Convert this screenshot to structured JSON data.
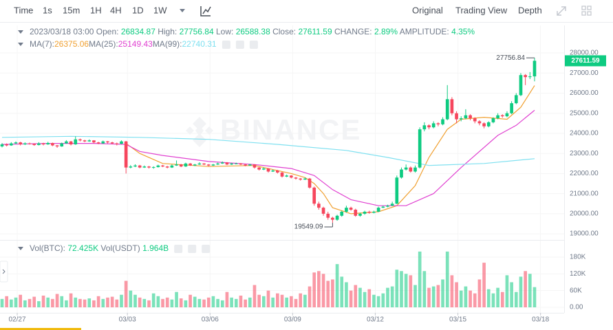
{
  "toolbar": {
    "intervals": [
      {
        "label": "Time",
        "active": false
      },
      {
        "label": "1s",
        "active": false
      },
      {
        "label": "15m",
        "active": false
      },
      {
        "label": "1H",
        "active": false
      },
      {
        "label": "4H",
        "active": true
      },
      {
        "label": "1D",
        "active": false
      },
      {
        "label": "1W",
        "active": false
      }
    ],
    "views": [
      {
        "label": "Original",
        "active": true
      },
      {
        "label": "Trading View",
        "active": false
      },
      {
        "label": "Depth",
        "active": false
      }
    ]
  },
  "info": {
    "date": "2023/03/18 03:00",
    "open_label": "Open:",
    "high_label": "High:",
    "low_label": "Low:",
    "close_label": "Close:",
    "change_label": "CHANGE:",
    "change": "2.89%",
    "amplitude_label": "AMPLITUDE:",
    "amplitude": "4.35%",
    "vol_btc_label": "Vol(BTC):",
    "vol_btc": "72.425K",
    "vol_usdt_label": "Vol(USDT)",
    "vol_usdt": "1.964B"
  },
  "watermark": "BINANCE",
  "chart_data": {
    "type": "candlestick",
    "up_color": "#0ecb81",
    "down_color": "#f6465d",
    "grid": true,
    "xlim": [
      -0.45,
      118.7
    ],
    "xticks": [
      {
        "value": 3.3,
        "label": "02/27"
      },
      {
        "value": 27.3,
        "label": "03/03"
      },
      {
        "value": 45.3,
        "label": "03/06"
      },
      {
        "value": 63.3,
        "label": "03/09"
      },
      {
        "value": 81.3,
        "label": "03/12"
      },
      {
        "value": 99.3,
        "label": "03/15"
      },
      {
        "value": 117.3,
        "label": "03/18"
      }
    ],
    "ylim": [
      18730,
      29370
    ],
    "yticks": [
      {
        "value": 19000,
        "label": "19000.00"
      },
      {
        "value": 20000,
        "label": "20000.00"
      },
      {
        "value": 21000,
        "label": "21000.00"
      },
      {
        "value": 22000,
        "label": "22000.00"
      },
      {
        "value": 23000,
        "label": "23000.00"
      },
      {
        "value": 24000,
        "label": "24000.00"
      },
      {
        "value": 25000,
        "label": "25000.00"
      },
      {
        "value": 26000,
        "label": "26000.00"
      },
      {
        "value": 27000,
        "label": "27000.00"
      },
      {
        "value": 28000,
        "label": "28000.00"
      }
    ],
    "candles": [
      [
        23350,
        23520,
        23300,
        23450
      ],
      [
        23450,
        23500,
        23350,
        23400
      ],
      [
        23400,
        23560,
        23380,
        23500
      ],
      [
        23500,
        23600,
        23460,
        23550
      ],
      [
        23550,
        23580,
        23400,
        23450
      ],
      [
        23450,
        23550,
        23420,
        23500
      ],
      [
        23500,
        23540,
        23440,
        23480
      ],
      [
        23480,
        23500,
        23380,
        23420
      ],
      [
        23420,
        23560,
        23400,
        23500
      ],
      [
        23500,
        23530,
        23400,
        23450
      ],
      [
        23450,
        23580,
        23430,
        23520
      ],
      [
        23520,
        23540,
        23360,
        23400
      ],
      [
        23400,
        23420,
        23280,
        23350
      ],
      [
        23350,
        23540,
        23330,
        23500
      ],
      [
        23500,
        23660,
        23480,
        23600
      ],
      [
        23600,
        23620,
        23400,
        23450
      ],
      [
        23450,
        23850,
        23430,
        23700
      ],
      [
        23700,
        23740,
        23600,
        23650
      ],
      [
        23650,
        23680,
        23560,
        23600
      ],
      [
        23600,
        23700,
        23580,
        23650
      ],
      [
        23650,
        23660,
        23500,
        23550
      ],
      [
        23550,
        23580,
        23460,
        23500
      ],
      [
        23500,
        23640,
        23480,
        23600
      ],
      [
        23600,
        23620,
        23500,
        23550
      ],
      [
        23550,
        23580,
        23460,
        23500
      ],
      [
        23500,
        23540,
        23400,
        23480
      ],
      [
        23480,
        23650,
        23460,
        23600
      ],
      [
        23600,
        23620,
        22000,
        22300
      ],
      [
        22300,
        22420,
        22260,
        22350
      ],
      [
        22350,
        22460,
        22320,
        22400
      ],
      [
        22400,
        22430,
        22260,
        22300
      ],
      [
        22300,
        22400,
        22280,
        22350
      ],
      [
        22350,
        22380,
        22250,
        22300
      ],
      [
        22300,
        22360,
        22240,
        22320
      ],
      [
        22320,
        22440,
        22300,
        22400
      ],
      [
        22400,
        22430,
        22320,
        22350
      ],
      [
        22350,
        22380,
        22260,
        22300
      ],
      [
        22300,
        22450,
        22280,
        22400
      ],
      [
        22400,
        22650,
        22380,
        22450
      ],
      [
        22450,
        22480,
        22320,
        22350
      ],
      [
        22350,
        22540,
        22330,
        22500
      ],
      [
        22500,
        22520,
        22380,
        22400
      ],
      [
        22400,
        22480,
        22370,
        22450
      ],
      [
        22450,
        22560,
        22430,
        22500
      ],
      [
        22500,
        22520,
        22420,
        22450
      ],
      [
        22450,
        22470,
        22360,
        22400
      ],
      [
        22400,
        22480,
        22380,
        22450
      ],
      [
        22450,
        22540,
        22430,
        22500
      ],
      [
        22500,
        22600,
        22480,
        22550
      ],
      [
        22550,
        22570,
        22420,
        22450
      ],
      [
        22450,
        22530,
        22430,
        22500
      ],
      [
        22500,
        22540,
        22460,
        22500
      ],
      [
        22500,
        22520,
        22420,
        22450
      ],
      [
        22450,
        22470,
        22360,
        22400
      ],
      [
        22400,
        22480,
        22380,
        22450
      ],
      [
        22450,
        22460,
        22250,
        22300
      ],
      [
        22300,
        22320,
        22150,
        22200
      ],
      [
        22200,
        22300,
        22170,
        22250
      ],
      [
        22250,
        22270,
        22050,
        22100
      ],
      [
        22100,
        22200,
        22080,
        22150
      ],
      [
        22150,
        22180,
        22000,
        22050
      ],
      [
        22050,
        22080,
        21800,
        21850
      ],
      [
        21850,
        21950,
        21820,
        21900
      ],
      [
        21900,
        21920,
        21760,
        21800
      ],
      [
        21800,
        21830,
        21700,
        21750
      ],
      [
        21750,
        21780,
        21650,
        21700
      ],
      [
        21700,
        21800,
        21680,
        21750
      ],
      [
        21750,
        21780,
        21250,
        21300
      ],
      [
        21300,
        21350,
        20400,
        20500
      ],
      [
        20500,
        20600,
        20200,
        20300
      ],
      [
        20300,
        20350,
        19900,
        20000
      ],
      [
        20000,
        20100,
        19700,
        19800
      ],
      [
        19800,
        19850,
        19549.09,
        19700
      ],
      [
        19700,
        19950,
        19650,
        19900
      ],
      [
        19900,
        20150,
        19850,
        20100
      ],
      [
        20100,
        20400,
        20050,
        20300
      ],
      [
        20300,
        20350,
        20150,
        20200
      ],
      [
        20200,
        20250,
        19850,
        19900
      ],
      [
        19900,
        20050,
        19850,
        20000
      ],
      [
        20000,
        20150,
        19950,
        20100
      ],
      [
        20100,
        20150,
        20000,
        20050
      ],
      [
        20050,
        20150,
        20020,
        20100
      ],
      [
        20100,
        20350,
        20080,
        20300
      ],
      [
        20300,
        20400,
        20280,
        20350
      ],
      [
        20350,
        20450,
        20320,
        20400
      ],
      [
        20400,
        20600,
        20380,
        20500
      ],
      [
        20500,
        21900,
        20480,
        21800
      ],
      [
        21800,
        22300,
        21750,
        22200
      ],
      [
        22200,
        22450,
        22150,
        22300
      ],
      [
        22300,
        22350,
        22050,
        22100
      ],
      [
        22100,
        22400,
        22050,
        22300
      ],
      [
        22300,
        24300,
        22250,
        24200
      ],
      [
        24200,
        24550,
        24100,
        24400
      ],
      [
        24400,
        24450,
        24200,
        24300
      ],
      [
        24300,
        24600,
        24250,
        24500
      ],
      [
        24500,
        24550,
        24350,
        24450
      ],
      [
        24450,
        24800,
        24400,
        24700
      ],
      [
        24700,
        26400,
        24650,
        25700
      ],
      [
        25700,
        25800,
        24900,
        25000
      ],
      [
        25000,
        25100,
        24500,
        24700
      ],
      [
        24700,
        24850,
        24600,
        24750
      ],
      [
        24750,
        25200,
        24700,
        24900
      ],
      [
        24900,
        24950,
        24650,
        24750
      ],
      [
        24750,
        24800,
        24500,
        24600
      ],
      [
        24600,
        24650,
        24400,
        24500
      ],
      [
        24500,
        24550,
        24250,
        24350
      ],
      [
        24350,
        24600,
        24300,
        24550
      ],
      [
        24550,
        24800,
        24500,
        24750
      ],
      [
        24750,
        25000,
        24700,
        24900
      ],
      [
        24900,
        24950,
        24780,
        24850
      ],
      [
        24850,
        25100,
        24800,
        25000
      ],
      [
        25000,
        25600,
        24950,
        25500
      ],
      [
        25500,
        26000,
        25450,
        25900
      ],
      [
        25900,
        27000,
        25850,
        26900
      ],
      [
        26900,
        26950,
        26400,
        26800
      ],
      [
        26800,
        27050,
        26700,
        26834.87
      ],
      [
        26834.87,
        27756.84,
        26588.38,
        27611.59
      ]
    ],
    "ma_series": [
      {
        "name": "MA(7):",
        "color": "#f0a030",
        "x": [
          27,
          30,
          35,
          45,
          55,
          63,
          66,
          68,
          70,
          72,
          76,
          82,
          86,
          90,
          93,
          97,
          100,
          105,
          110,
          113,
          116
        ],
        "values": [
          23500,
          23000,
          22500,
          22350,
          22400,
          22000,
          21800,
          21500,
          21000,
          20300,
          20000,
          20100,
          20400,
          21400,
          22800,
          24200,
          24700,
          24800,
          24700,
          25300,
          26375.06
        ]
      },
      {
        "name": "MA(25):",
        "color": "#e040d0",
        "x": [
          0,
          10,
          20,
          27,
          30,
          35,
          45,
          55,
          63,
          68,
          72,
          76,
          82,
          88,
          94,
          100,
          108,
          112,
          116
        ],
        "values": [
          23450,
          23500,
          23500,
          23450,
          23100,
          22900,
          22600,
          22450,
          22250,
          21900,
          21200,
          20700,
          20400,
          20400,
          21000,
          22300,
          23900,
          24400,
          25149.43
        ]
      },
      {
        "name": "MA(99):",
        "color": "#7ee0f0",
        "x": [
          0,
          15,
          30,
          45,
          60,
          75,
          84,
          93,
          105,
          116
        ],
        "values": [
          23800,
          23850,
          23800,
          23700,
          23450,
          23150,
          22800,
          22400,
          22500,
          22740.31
        ]
      }
    ],
    "volume": {
      "values": [
        30000,
        40000,
        28000,
        35000,
        45000,
        25000,
        30000,
        38000,
        22000,
        42000,
        35000,
        30000,
        48000,
        40000,
        25000,
        50000,
        35000,
        30000,
        28000,
        32000,
        25000,
        40000,
        30000,
        35000,
        38000,
        28000,
        45000,
        95000,
        60000,
        45000,
        35000,
        30000,
        25000,
        50000,
        40000,
        30000,
        35000,
        28000,
        55000,
        32000,
        25000,
        45000,
        38000,
        30000,
        28000,
        35000,
        40000,
        30000,
        25000,
        55000,
        35000,
        30000,
        42000,
        28000,
        35000,
        80000,
        45000,
        40000,
        60000,
        35000,
        50000,
        45000,
        35000,
        40000,
        30000,
        50000,
        45000,
        75000,
        125000,
        130000,
        120000,
        95000,
        100000,
        155000,
        110000,
        90000,
        60000,
        80000,
        70000,
        55000,
        65000,
        45000,
        40000,
        50000,
        70000,
        75000,
        135000,
        130000,
        120000,
        115000,
        80000,
        200000,
        130000,
        70000,
        75000,
        80000,
        100000,
        200000,
        115000,
        90000,
        60000,
        75000,
        60000,
        50000,
        100000,
        160000,
        65000,
        50000,
        70000,
        55000,
        115000,
        90000,
        55000,
        110000,
        130000,
        120000,
        72425
      ],
      "ylim": [
        -19700,
        239200
      ],
      "yticks": [
        {
          "value": 0,
          "label": "0.00"
        },
        {
          "value": 60000,
          "label": "60K"
        },
        {
          "value": 120000,
          "label": "120K"
        },
        {
          "value": 180000,
          "label": "180K"
        }
      ]
    }
  }
}
